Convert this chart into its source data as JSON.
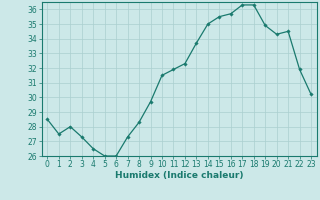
{
  "x": [
    0,
    1,
    2,
    3,
    4,
    5,
    6,
    7,
    8,
    9,
    10,
    11,
    12,
    13,
    14,
    15,
    16,
    17,
    18,
    19,
    20,
    21,
    22,
    23
  ],
  "y": [
    28.5,
    27.5,
    28.0,
    27.3,
    26.5,
    26.0,
    26.0,
    27.3,
    28.3,
    29.7,
    31.5,
    31.9,
    32.3,
    33.7,
    35.0,
    35.5,
    35.7,
    36.3,
    36.3,
    34.9,
    34.3,
    34.5,
    31.9,
    30.2
  ],
  "line_color": "#1a7a6e",
  "marker": "D",
  "marker_size": 1.8,
  "bg_color": "#cce8e8",
  "grid_color": "#aacfcf",
  "xlabel": "Humidex (Indice chaleur)",
  "ylim": [
    26,
    36.5
  ],
  "xlim": [
    -0.5,
    23.5
  ],
  "yticks": [
    26,
    27,
    28,
    29,
    30,
    31,
    32,
    33,
    34,
    35,
    36
  ],
  "xticks": [
    0,
    1,
    2,
    3,
    4,
    5,
    6,
    7,
    8,
    9,
    10,
    11,
    12,
    13,
    14,
    15,
    16,
    17,
    18,
    19,
    20,
    21,
    22,
    23
  ],
  "tick_label_size": 5.5,
  "xlabel_size": 6.5,
  "axis_color": "#1a7a6e"
}
